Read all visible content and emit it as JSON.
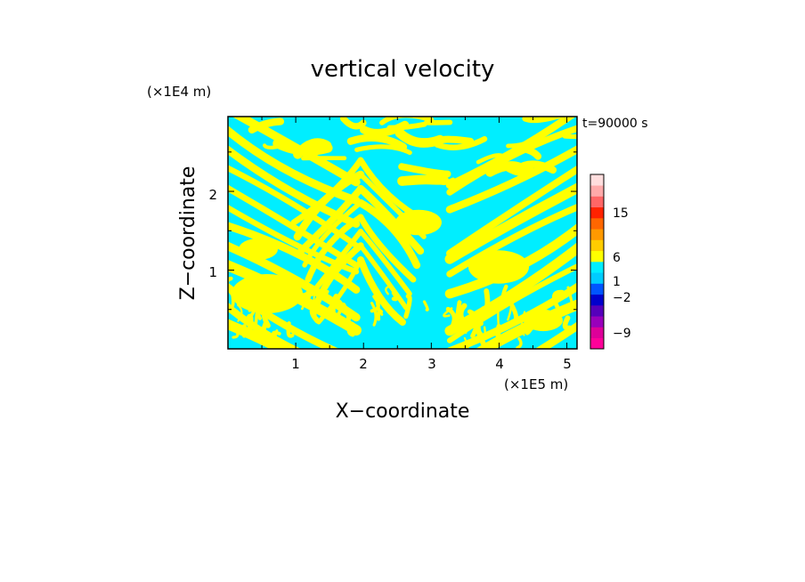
{
  "chart_data": {
    "type": "heatmap",
    "title": "vertical velocity",
    "time_label": "t=90000 s",
    "xlabel": "X−coordinate",
    "ylabel": "Z−coordinate",
    "x_unit": "(×1E5 m)",
    "z_unit": "(×1E4 m)",
    "x_ticks": [
      "1",
      "2",
      "3",
      "4",
      "5"
    ],
    "z_ticks": [
      "1",
      "2"
    ],
    "x_range": [
      0,
      5.15
    ],
    "z_range": [
      0,
      2.95
    ],
    "field_colors": {
      "positive": "#ffff00",
      "negative": "#00eeff"
    },
    "colorbar": {
      "labels": [
        "15",
        "6",
        "1",
        "−2",
        "−9"
      ],
      "colors": [
        "#ff0099",
        "#dd0099",
        "#9900bb",
        "#5500bb",
        "#0000cc",
        "#0055ff",
        "#00ccff",
        "#00eeff",
        "#ffff00",
        "#ffcc00",
        "#ff9900",
        "#ff6600",
        "#ff2200",
        "#ff6666",
        "#ffaaaa",
        "#ffdddd"
      ]
    }
  }
}
